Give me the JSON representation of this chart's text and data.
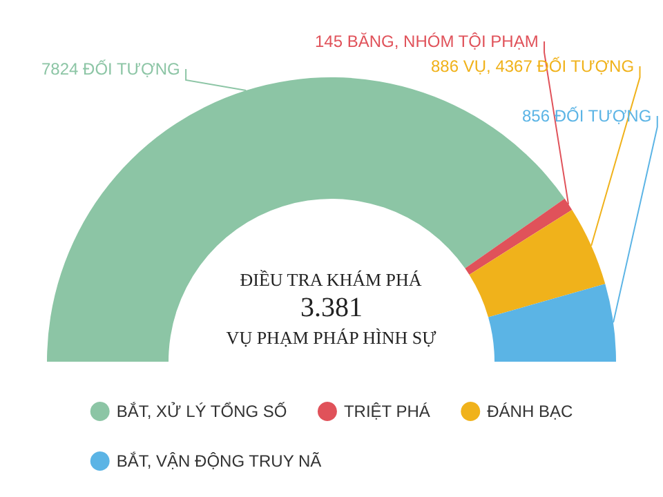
{
  "chart_data": {
    "type": "donut",
    "categories": [
      "BẮT, XỬ LÝ TỔNG SỐ",
      "TRIỆT PHÁ",
      "ĐÁNH BẠC",
      "BẮT, VẬN ĐỘNG TRUY NÃ"
    ],
    "values": [
      7824,
      145,
      886,
      856
    ],
    "value_labels": [
      "7824 ĐỐI TƯỢNG",
      "145 BĂNG, NHÓM TỘI PHẠM",
      "886 VỤ, 4367 ĐỐI TƯỢNG",
      "856 ĐỐI TƯỢNG"
    ],
    "colors": [
      "#8cc5a5",
      "#e0525a",
      "#f0b21b",
      "#5bb4e5"
    ],
    "annotations": [
      "ĐIỀU TRA KHÁM PHÁ",
      "3.381",
      "VỤ PHẠM PHÁP HÌNH SỰ"
    ],
    "legend": "bottom"
  }
}
